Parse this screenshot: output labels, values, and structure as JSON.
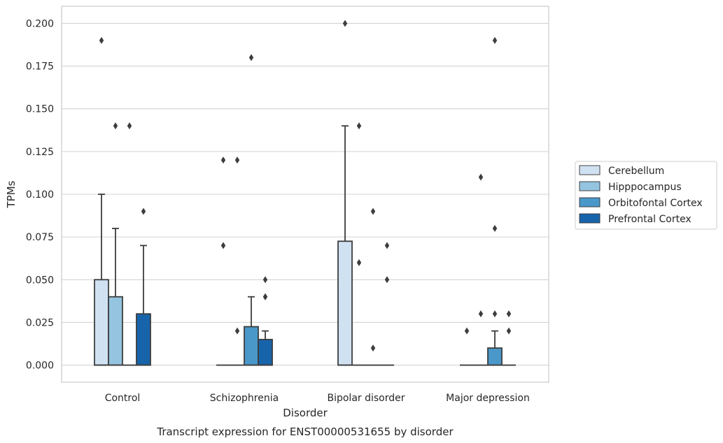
{
  "chart_data": {
    "type": "box",
    "caption": "Transcript expression for ENST00000531655 by disorder",
    "xlabel": "Disorder",
    "ylabel": "TPMs",
    "ylim": [
      -0.01,
      0.21
    ],
    "yticks": [
      "0.000",
      "0.025",
      "0.050",
      "0.075",
      "0.100",
      "0.125",
      "0.150",
      "0.175",
      "0.200"
    ],
    "grid": "horizontal",
    "legend_position": "right",
    "categories": [
      "Control",
      "Schizophrenia",
      "Bipolar disorder",
      "Major depression"
    ],
    "series": [
      {
        "name": "Cerebellum",
        "color": "#d0e1f2",
        "boxes": [
          {
            "q1": 0,
            "median": 0,
            "q3": 0.05,
            "whisker_low": 0,
            "whisker_high": 0.1,
            "outliers": [
              0.19
            ]
          },
          {
            "q1": 0,
            "median": 0,
            "q3": 0,
            "whisker_low": 0,
            "whisker_high": 0,
            "outliers": [
              0.07,
              0.12
            ]
          },
          {
            "q1": 0,
            "median": 0,
            "q3": 0.0725,
            "whisker_low": 0,
            "whisker_high": 0.14,
            "outliers": [
              0.2
            ]
          },
          {
            "q1": 0,
            "median": 0,
            "q3": 0,
            "whisker_low": 0,
            "whisker_high": 0,
            "outliers": [
              0.02
            ]
          }
        ]
      },
      {
        "name": "Hipppocampus",
        "color": "#94c4df",
        "boxes": [
          {
            "q1": 0,
            "median": 0,
            "q3": 0.04,
            "whisker_low": 0,
            "whisker_high": 0.08,
            "outliers": [
              0.14
            ]
          },
          {
            "q1": 0,
            "median": 0,
            "q3": 0,
            "whisker_low": 0,
            "whisker_high": 0,
            "outliers": [
              0.02,
              0.12
            ]
          },
          {
            "q1": 0,
            "median": 0,
            "q3": 0,
            "whisker_low": 0,
            "whisker_high": 0,
            "outliers": [
              0.06,
              0.14
            ]
          },
          {
            "q1": 0,
            "median": 0,
            "q3": 0,
            "whisker_low": 0,
            "whisker_high": 0,
            "outliers": [
              0.03,
              0.11
            ]
          }
        ]
      },
      {
        "name": "Orbitofontal Cortex",
        "color": "#4a98c9",
        "boxes": [
          {
            "q1": 0,
            "median": 0,
            "q3": 0,
            "whisker_low": 0,
            "whisker_high": 0,
            "outliers": [
              0.14
            ]
          },
          {
            "q1": 0,
            "median": 0,
            "q3": 0.0225,
            "whisker_low": 0,
            "whisker_high": 0.04,
            "outliers": [
              0.18
            ]
          },
          {
            "q1": 0,
            "median": 0,
            "q3": 0,
            "whisker_low": 0,
            "whisker_high": 0,
            "outliers": [
              0.01,
              0.09
            ]
          },
          {
            "q1": 0,
            "median": 0,
            "q3": 0.01,
            "whisker_low": 0,
            "whisker_high": 0.02,
            "outliers": [
              0.03,
              0.08,
              0.19
            ]
          }
        ]
      },
      {
        "name": "Prefrontal Cortex",
        "color": "#1764ab",
        "boxes": [
          {
            "q1": 0,
            "median": 0,
            "q3": 0.03,
            "whisker_low": 0,
            "whisker_high": 0.07,
            "outliers": [
              0.09
            ]
          },
          {
            "q1": 0,
            "median": 0,
            "q3": 0.015,
            "whisker_low": 0,
            "whisker_high": 0.02,
            "outliers": [
              0.04,
              0.04,
              0.05
            ]
          },
          {
            "q1": 0,
            "median": 0,
            "q3": 0,
            "whisker_low": 0,
            "whisker_high": 0,
            "outliers": [
              0.05,
              0.07
            ]
          },
          {
            "q1": 0,
            "median": 0,
            "q3": 0,
            "whisker_low": 0,
            "whisker_high": 0,
            "outliers": [
              0.02,
              0.03
            ]
          }
        ]
      }
    ]
  }
}
